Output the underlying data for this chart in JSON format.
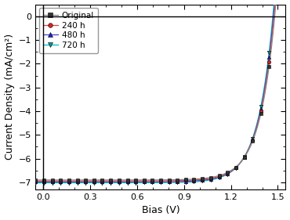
{
  "title": "",
  "xlabel": "Bias (V)",
  "ylabel": "Current Density (mA/cm²)",
  "xlim": [
    -0.05,
    1.55
  ],
  "ylim": [
    -7.3,
    0.5
  ],
  "xticks": [
    0.0,
    0.3,
    0.6,
    0.9,
    1.2,
    1.5
  ],
  "yticks": [
    0,
    -1,
    -2,
    -3,
    -4,
    -5,
    -6,
    -7
  ],
  "series": [
    {
      "label": "Original",
      "color": "#888888",
      "marker": "s",
      "marker_color": "#333333",
      "linestyle": "-"
    },
    {
      "label": "240 h",
      "color": "#dd4444",
      "marker": "o",
      "marker_color": "#dd2222",
      "linestyle": "-"
    },
    {
      "label": "480 h",
      "color": "#4444cc",
      "marker": "^",
      "marker_color": "#2222cc",
      "linestyle": "-"
    },
    {
      "label": "720 h",
      "color": "#00bbbb",
      "marker": "v",
      "marker_color": "#009999",
      "linestyle": "-"
    }
  ],
  "Jsc": -6.9,
  "Voc": 1.48,
  "n_ideality": 3.8,
  "background_color": "#ffffff",
  "legend_fontsize": 7.5,
  "axis_fontsize": 9,
  "tick_fontsize": 8,
  "Jsc_variations": [
    0.0,
    0.04,
    0.08,
    0.12
  ],
  "J0_scale_variations": [
    1.0,
    1.05,
    1.1,
    1.15
  ],
  "n_markers": 30
}
